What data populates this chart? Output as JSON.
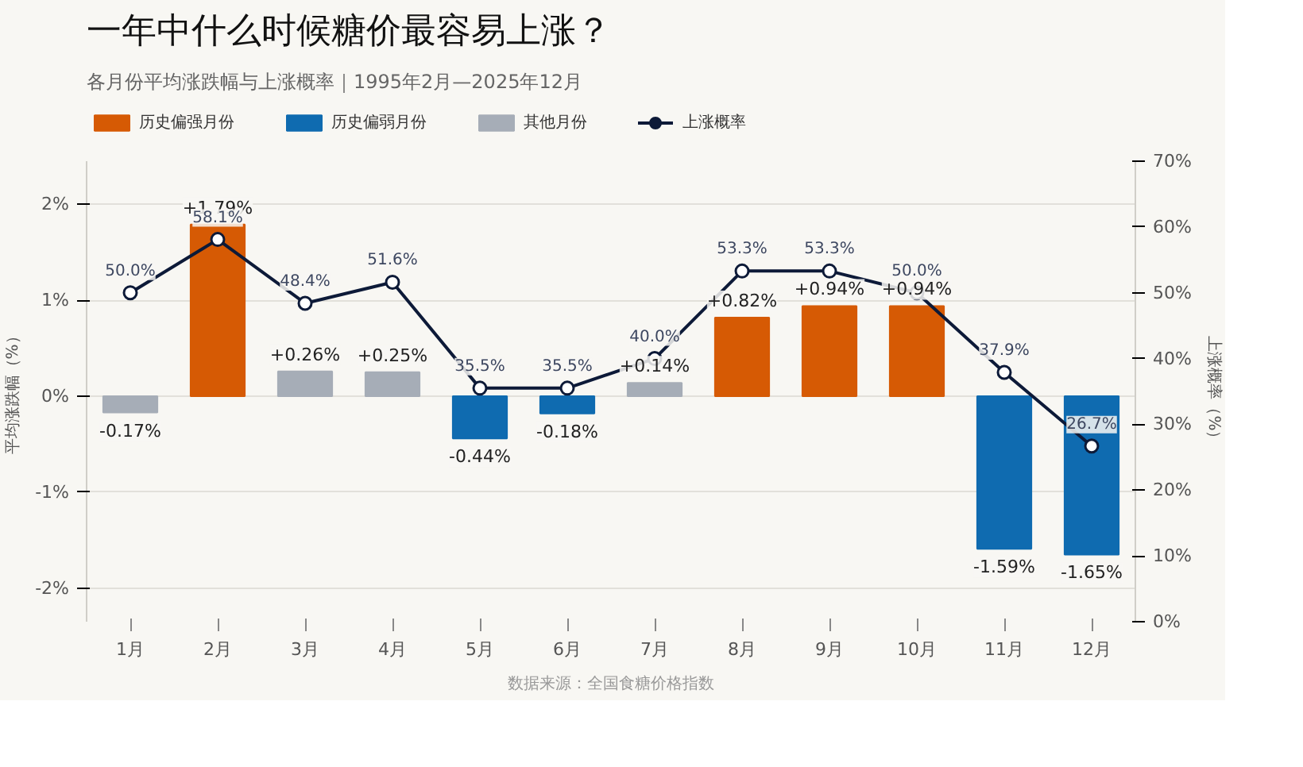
{
  "chart_data": {
    "type": "bar",
    "title": "一年中什么时候糖价最容易上涨？",
    "subtitle": "各月份平均涨跌幅与上涨概率｜1995年2月—2025年12月",
    "ylabel": "平均涨跌幅（%）",
    "y2label": "上涨概率（%）",
    "annotations": [
      "数据来源：全国食糖价格指数"
    ],
    "categories": [
      "1月",
      "2月",
      "3月",
      "4月",
      "5月",
      "6月",
      "7月",
      "8月",
      "9月",
      "10月",
      "11月",
      "12月"
    ],
    "series": [
      {
        "name": "历史偏强月份",
        "color": "#d65a04",
        "values": [
          null,
          1.79,
          null,
          null,
          null,
          null,
          null,
          0.82,
          0.94,
          0.94,
          null,
          null
        ],
        "value_labels": [
          null,
          "+1.79%",
          null,
          null,
          null,
          null,
          null,
          "+0.82%",
          "+0.94%",
          "+0.94%",
          null,
          null
        ]
      },
      {
        "name": "历史偏弱月份",
        "color": "#0f6bb0",
        "values": [
          null,
          null,
          null,
          null,
          -0.44,
          -0.18,
          null,
          null,
          null,
          null,
          -1.59,
          -1.65
        ],
        "value_labels": [
          null,
          null,
          null,
          null,
          "-0.44%",
          "-0.18%",
          null,
          null,
          null,
          null,
          "-1.59%",
          "-1.65%"
        ]
      },
      {
        "name": "其他月份",
        "color": "#a6adb7",
        "values": [
          -0.17,
          null,
          0.26,
          0.25,
          null,
          null,
          0.14,
          null,
          null,
          null,
          null,
          null
        ],
        "value_labels": [
          "-0.17%",
          null,
          "+0.26%",
          "+0.25%",
          null,
          null,
          "+0.14%",
          null,
          null,
          null,
          null,
          null
        ]
      },
      {
        "name": "上涨概率",
        "type": "line",
        "axis": "y2",
        "color": "#0d1a38",
        "marker": "circle",
        "values": [
          50.0,
          58.1,
          48.4,
          51.6,
          35.5,
          35.5,
          40.0,
          53.3,
          53.3,
          50.0,
          37.9,
          26.7
        ],
        "value_labels": [
          "50.0%",
          "58.1%",
          "48.4%",
          "51.6%",
          "35.5%",
          "35.5%",
          "40.0%",
          "53.3%",
          "53.3%",
          "50.0%",
          "37.9%",
          "26.7%"
        ]
      }
    ],
    "ylim": [
      -2.35,
      2.45
    ],
    "yticks": [
      {
        "value": -2,
        "label": "-2%"
      },
      {
        "value": -1,
        "label": "-1%"
      },
      {
        "value": 0,
        "label": "0%"
      },
      {
        "value": 1,
        "label": "1%"
      },
      {
        "value": 2,
        "label": "2%"
      }
    ],
    "y2lim": [
      0,
      70
    ],
    "y2ticks": [
      {
        "value": 0,
        "label": "0%"
      },
      {
        "value": 10,
        "label": "10%"
      },
      {
        "value": 20,
        "label": "20%"
      },
      {
        "value": 30,
        "label": "30%"
      },
      {
        "value": 40,
        "label": "40%"
      },
      {
        "value": 50,
        "label": "50%"
      },
      {
        "value": 60,
        "label": "60%"
      },
      {
        "value": 70,
        "label": "70%"
      }
    ],
    "grid": "y",
    "legend": "top left"
  }
}
